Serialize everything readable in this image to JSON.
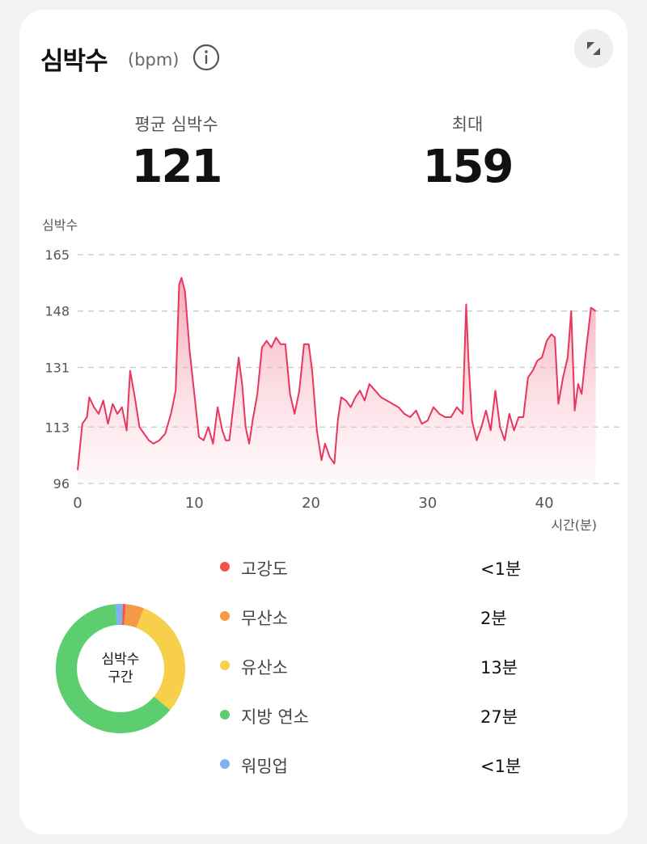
{
  "header": {
    "title": "심박수",
    "unit": "(bpm)"
  },
  "icons": {
    "info": "info-icon",
    "expand": "collapse-arrows-icon"
  },
  "stats": {
    "average": {
      "label": "평균 심박수",
      "value": "121"
    },
    "max": {
      "label": "최대",
      "value": "159"
    }
  },
  "chart_data": {
    "type": "area",
    "ylabel": "심박수",
    "xlabel": "시간(분)",
    "xlim": [
      0,
      44.5
    ],
    "ylim": [
      96,
      165
    ],
    "y_ticks": [
      96,
      113,
      131,
      148,
      165
    ],
    "x_ticks": [
      0,
      10,
      20,
      30,
      40
    ],
    "grid": true,
    "line_color": "#e8365d",
    "x": [
      0,
      0.4,
      0.8,
      1,
      1.4,
      1.8,
      2.2,
      2.6,
      3,
      3.4,
      3.8,
      4.2,
      4.5,
      4.9,
      5.3,
      5.7,
      6.1,
      6.5,
      7,
      7.5,
      8,
      8.4,
      8.7,
      8.9,
      9.2,
      9.6,
      10,
      10.4,
      10.8,
      11.2,
      11.6,
      12,
      12.4,
      12.7,
      13,
      13.4,
      13.8,
      14.1,
      14.4,
      14.7,
      15,
      15.4,
      15.8,
      16.2,
      16.6,
      17,
      17.4,
      17.8,
      18.2,
      18.6,
      19,
      19.4,
      19.8,
      20.1,
      20.5,
      20.9,
      21.2,
      21.6,
      22,
      22.3,
      22.6,
      23,
      23.4,
      23.8,
      24.2,
      24.6,
      25,
      25.5,
      26,
      26.5,
      27,
      27.5,
      28,
      28.5,
      29,
      29.5,
      30,
      30.5,
      31,
      31.5,
      32,
      32.5,
      33,
      33.3,
      33.5,
      33.8,
      34.2,
      34.6,
      35,
      35.4,
      35.8,
      36.2,
      36.6,
      37,
      37.4,
      37.8,
      38.2,
      38.6,
      39,
      39.4,
      39.8,
      40.2,
      40.6,
      40.9,
      41.2,
      41.6,
      42,
      42.3,
      42.6,
      42.9,
      43.2,
      43.6,
      44,
      44.4
    ],
    "values": [
      100,
      114,
      116,
      122,
      119,
      117,
      121,
      114,
      120,
      117,
      119,
      112,
      130,
      122,
      113,
      111,
      109,
      108,
      109,
      111,
      117,
      124,
      156,
      158,
      154,
      136,
      123,
      110,
      109,
      113,
      108,
      119,
      112,
      109,
      109,
      121,
      134,
      126,
      113,
      108,
      115,
      123,
      137,
      139,
      137,
      140,
      138,
      138,
      123,
      117,
      124,
      138,
      138,
      130,
      112,
      103,
      108,
      104,
      102,
      115,
      122,
      121,
      119,
      122,
      124,
      121,
      126,
      124,
      122,
      121,
      120,
      119,
      117,
      116,
      118,
      114,
      115,
      119,
      117,
      116,
      116,
      119,
      117,
      150,
      133,
      115,
      109,
      113,
      118,
      112,
      124,
      113,
      109,
      117,
      112,
      116,
      116,
      128,
      130,
      133,
      134,
      139,
      141,
      140,
      120,
      128,
      134,
      148,
      118,
      126,
      123,
      137,
      149,
      148
    ],
    "overlay_color": "#f0f0f0"
  },
  "zones": {
    "center_label": [
      "심박수",
      "구간"
    ],
    "items": [
      {
        "name": "고강도",
        "value": "<1분",
        "color": "#f1554a",
        "minutes": 0.3
      },
      {
        "name": "무산소",
        "value": "2분",
        "color": "#f39a47",
        "minutes": 2
      },
      {
        "name": "유산소",
        "value": "13분",
        "color": "#f7cf4a",
        "minutes": 13
      },
      {
        "name": "지방 연소",
        "value": "27분",
        "color": "#5dce6f",
        "minutes": 27
      },
      {
        "name": "워밍업",
        "value": "<1분",
        "color": "#7eb3f0",
        "minutes": 0.8
      }
    ]
  }
}
